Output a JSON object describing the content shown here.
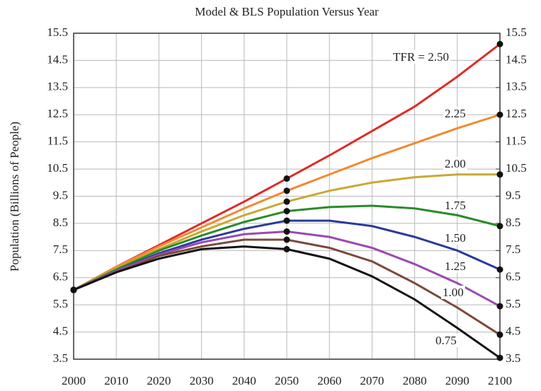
{
  "chart_data": {
    "type": "line",
    "title": "Model & BLS Population Versus Year",
    "y_label": "Population (Billions of People)",
    "x": [
      2000,
      2010,
      2020,
      2030,
      2040,
      2050,
      2060,
      2070,
      2080,
      2090,
      2100
    ],
    "xlim": [
      2000,
      2100
    ],
    "xticks": [
      2000,
      2010,
      2020,
      2030,
      2040,
      2050,
      2060,
      2070,
      2080,
      2090,
      2100
    ],
    "ylim": [
      3.5,
      15.5
    ],
    "yticks": [
      3.5,
      4.5,
      5.5,
      6.5,
      7.5,
      8.5,
      9.5,
      10.5,
      11.5,
      12.5,
      13.5,
      14.5,
      15.5
    ],
    "y2lim": [
      3.5,
      15.5
    ],
    "y2ticks": [
      3.5,
      4.5,
      5.5,
      6.5,
      7.5,
      8.5,
      9.5,
      10.5,
      11.5,
      12.5,
      13.5,
      14.5,
      15.5
    ],
    "grid": true,
    "marker_x": [
      2000,
      2050,
      2100
    ],
    "series": [
      {
        "name": "TFR = 2.50",
        "color": "#e02a2a",
        "values": [
          6.05,
          6.9,
          7.7,
          8.5,
          9.3,
          10.15,
          11.0,
          11.9,
          12.8,
          13.9,
          15.1
        ]
      },
      {
        "name": "2.25",
        "color": "#f28a30",
        "values": [
          6.05,
          6.9,
          7.65,
          8.35,
          9.05,
          9.7,
          10.3,
          10.9,
          11.45,
          12.0,
          12.5
        ]
      },
      {
        "name": "2.00",
        "color": "#c9a834",
        "values": [
          6.05,
          6.85,
          7.55,
          8.2,
          8.8,
          9.3,
          9.7,
          10.0,
          10.2,
          10.3,
          10.3
        ]
      },
      {
        "name": "1.75",
        "color": "#2a8a2a",
        "values": [
          6.05,
          6.8,
          7.5,
          8.05,
          8.55,
          8.95,
          9.1,
          9.15,
          9.05,
          8.8,
          8.4
        ]
      },
      {
        "name": "1.50",
        "color": "#2a3a9a",
        "values": [
          6.05,
          6.75,
          7.4,
          7.9,
          8.3,
          8.6,
          8.6,
          8.4,
          8.0,
          7.5,
          6.8
        ]
      },
      {
        "name": "1.25",
        "color": "#9a4ab0",
        "values": [
          6.05,
          6.75,
          7.35,
          7.8,
          8.1,
          8.2,
          8.0,
          7.6,
          7.0,
          6.3,
          5.45
        ]
      },
      {
        "name": "1.00",
        "color": "#7a4a3a",
        "values": [
          6.05,
          6.7,
          7.3,
          7.65,
          7.9,
          7.9,
          7.6,
          7.1,
          6.3,
          5.4,
          4.4
        ]
      },
      {
        "name": "0.75",
        "color": "#111111",
        "values": [
          6.05,
          6.7,
          7.2,
          7.55,
          7.65,
          7.55,
          7.2,
          6.55,
          5.7,
          4.65,
          3.55
        ]
      }
    ]
  }
}
